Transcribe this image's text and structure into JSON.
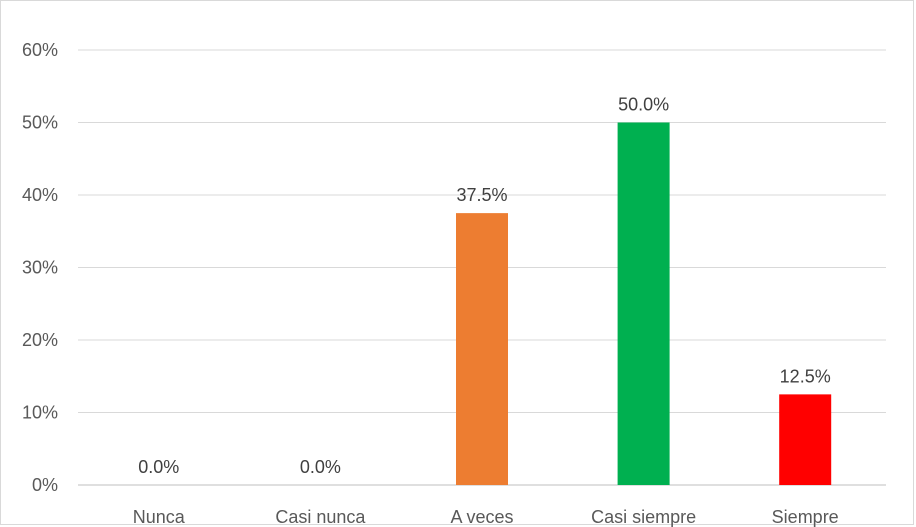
{
  "chart_data": {
    "type": "bar",
    "categories": [
      "Nunca",
      "Casi nunca",
      "A veces",
      "Casi siempre",
      "Siempre"
    ],
    "values": [
      0.0,
      0.0,
      37.5,
      50.0,
      12.5
    ],
    "data_labels": [
      "0.0%",
      "0.0%",
      "37.5%",
      "50.0%",
      "12.5%"
    ],
    "colors": [
      "#ed7d31",
      "#ed7d31",
      "#ed7d31",
      "#00b050",
      "#ff0000"
    ],
    "y_ticks": [
      0,
      10,
      20,
      30,
      40,
      50,
      60
    ],
    "y_tick_labels": [
      "0%",
      "10%",
      "20%",
      "30%",
      "40%",
      "50%",
      "60%"
    ],
    "ylim": [
      0,
      60
    ],
    "grid": true,
    "legend": "none"
  }
}
